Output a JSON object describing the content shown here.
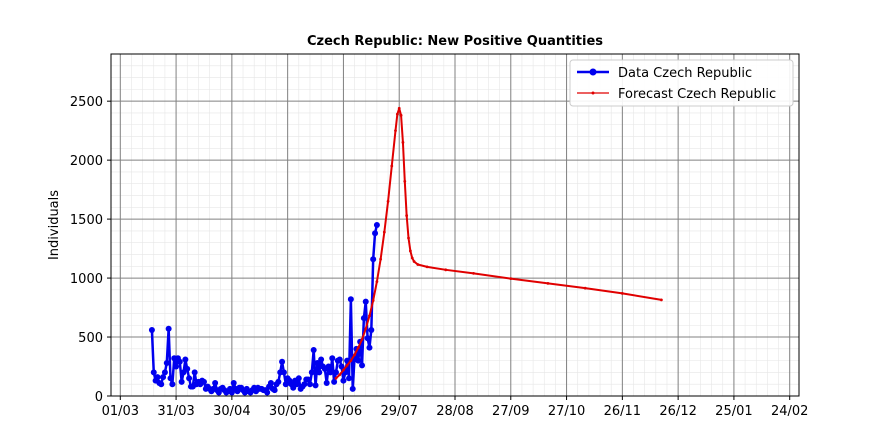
{
  "chart_data": {
    "type": "line",
    "title": "Czech Republic: New Positive Quantities",
    "xlabel": "",
    "ylabel": "Individuals",
    "x_ticks": [
      "01/03",
      "31/03",
      "30/04",
      "30/05",
      "29/06",
      "29/07",
      "28/08",
      "27/09",
      "27/10",
      "26/11",
      "26/12",
      "25/01",
      "24/02"
    ],
    "y_ticks": [
      "0",
      "500",
      "1000",
      "1500",
      "2000",
      "2500"
    ],
    "ylim": [
      0,
      2900
    ],
    "grid": true,
    "legend_position": "top-right",
    "series": [
      {
        "name": "Data Czech Republic",
        "color": "#0000ee",
        "marker": "circle",
        "points": [
          [
            17,
            560
          ],
          [
            18,
            200
          ],
          [
            19,
            130
          ],
          [
            20,
            160
          ],
          [
            21,
            110
          ],
          [
            22,
            100
          ],
          [
            23,
            160
          ],
          [
            24,
            200
          ],
          [
            25,
            280
          ],
          [
            26,
            570
          ],
          [
            27,
            150
          ],
          [
            28,
            100
          ],
          [
            29,
            320
          ],
          [
            30,
            250
          ],
          [
            31,
            320
          ],
          [
            32,
            290
          ],
          [
            33,
            120
          ],
          [
            34,
            200
          ],
          [
            35,
            310
          ],
          [
            36,
            230
          ],
          [
            37,
            150
          ],
          [
            38,
            80
          ],
          [
            39,
            80
          ],
          [
            40,
            200
          ],
          [
            41,
            100
          ],
          [
            42,
            120
          ],
          [
            43,
            100
          ],
          [
            44,
            130
          ],
          [
            45,
            120
          ],
          [
            46,
            60
          ],
          [
            47,
            80
          ],
          [
            48,
            60
          ],
          [
            49,
            40
          ],
          [
            50,
            60
          ],
          [
            51,
            110
          ],
          [
            52,
            50
          ],
          [
            53,
            30
          ],
          [
            54,
            60
          ],
          [
            55,
            70
          ],
          [
            56,
            50
          ],
          [
            57,
            30
          ],
          [
            58,
            40
          ],
          [
            59,
            60
          ],
          [
            60,
            30
          ],
          [
            61,
            110
          ],
          [
            62,
            60
          ],
          [
            63,
            40
          ],
          [
            64,
            70
          ],
          [
            65,
            70
          ],
          [
            66,
            50
          ],
          [
            67,
            30
          ],
          [
            68,
            60
          ],
          [
            69,
            40
          ],
          [
            70,
            30
          ],
          [
            71,
            50
          ],
          [
            72,
            70
          ],
          [
            73,
            40
          ],
          [
            74,
            70
          ],
          [
            75,
            60
          ],
          [
            76,
            60
          ],
          [
            77,
            50
          ],
          [
            78,
            50
          ],
          [
            79,
            30
          ],
          [
            80,
            80
          ],
          [
            81,
            110
          ],
          [
            82,
            60
          ],
          [
            83,
            50
          ],
          [
            84,
            100
          ],
          [
            85,
            120
          ],
          [
            86,
            200
          ],
          [
            87,
            290
          ],
          [
            88,
            200
          ],
          [
            89,
            100
          ],
          [
            90,
            150
          ],
          [
            91,
            130
          ],
          [
            92,
            100
          ],
          [
            93,
            70
          ],
          [
            94,
            130
          ],
          [
            95,
            100
          ],
          [
            96,
            150
          ],
          [
            97,
            60
          ],
          [
            98,
            80
          ],
          [
            99,
            100
          ],
          [
            100,
            140
          ],
          [
            101,
            140
          ],
          [
            102,
            100
          ],
          [
            103,
            200
          ],
          [
            104,
            390
          ],
          [
            105,
            90
          ],
          [
            106,
            280
          ],
          [
            107,
            200
          ],
          [
            108,
            310
          ],
          [
            109,
            250
          ],
          [
            110,
            230
          ],
          [
            111,
            110
          ],
          [
            112,
            250
          ],
          [
            113,
            200
          ],
          [
            114,
            320
          ],
          [
            115,
            120
          ],
          [
            116,
            200
          ],
          [
            117,
            300
          ],
          [
            118,
            310
          ],
          [
            119,
            250
          ],
          [
            120,
            130
          ],
          [
            121,
            200
          ],
          [
            122,
            300
          ],
          [
            123,
            150
          ],
          [
            124,
            820
          ],
          [
            125,
            60
          ],
          [
            126,
            330
          ],
          [
            127,
            400
          ],
          [
            128,
            300
          ],
          [
            129,
            460
          ],
          [
            130,
            260
          ],
          [
            131,
            660
          ],
          [
            132,
            800
          ],
          [
            133,
            490
          ],
          [
            134,
            410
          ],
          [
            135,
            560
          ],
          [
            136,
            1160
          ],
          [
            137,
            1380
          ],
          [
            138,
            1450
          ]
        ]
      },
      {
        "name": "Forecast Czech Republic",
        "color": "#e00000",
        "marker": "small-dot",
        "points": [
          [
            116,
            150
          ],
          [
            118,
            180
          ],
          [
            120,
            220
          ],
          [
            122,
            260
          ],
          [
            124,
            300
          ],
          [
            126,
            350
          ],
          [
            128,
            410
          ],
          [
            130,
            480
          ],
          [
            132,
            570
          ],
          [
            134,
            680
          ],
          [
            136,
            810
          ],
          [
            138,
            970
          ],
          [
            140,
            1160
          ],
          [
            142,
            1390
          ],
          [
            144,
            1650
          ],
          [
            146,
            1950
          ],
          [
            148,
            2250
          ],
          [
            149,
            2390
          ],
          [
            150,
            2440
          ],
          [
            151,
            2380
          ],
          [
            152,
            2150
          ],
          [
            153,
            1820
          ],
          [
            154,
            1530
          ],
          [
            155,
            1340
          ],
          [
            156,
            1230
          ],
          [
            157,
            1170
          ],
          [
            158,
            1140
          ],
          [
            160,
            1115
          ],
          [
            165,
            1095
          ],
          [
            175,
            1070
          ],
          [
            190,
            1040
          ],
          [
            210,
            995
          ],
          [
            230,
            955
          ],
          [
            250,
            915
          ],
          [
            270,
            870
          ],
          [
            291,
            815
          ]
        ]
      }
    ]
  }
}
